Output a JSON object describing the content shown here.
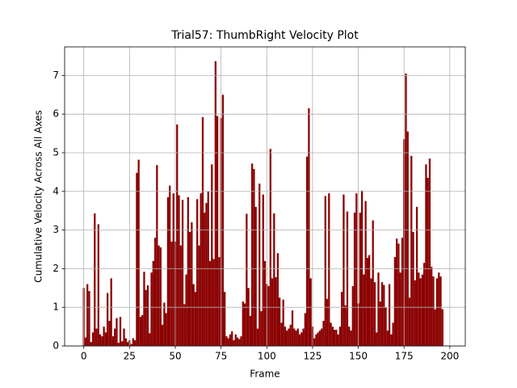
{
  "chart_data": {
    "type": "bar",
    "title": "Trial57: ThumbRight Velocity Plot",
    "x_label": "Frame",
    "y_label": "Cumulative Velocity Across All Axes",
    "color": "#8b0000",
    "grid": true,
    "x": [
      0,
      1,
      2,
      3,
      4,
      5,
      6,
      7,
      8,
      9,
      10,
      11,
      12,
      13,
      14,
      15,
      16,
      17,
      18,
      19,
      20,
      21,
      22,
      23,
      24,
      25,
      26,
      27,
      28,
      29,
      30,
      31,
      32,
      33,
      34,
      35,
      36,
      37,
      38,
      39,
      40,
      41,
      42,
      43,
      44,
      45,
      46,
      47,
      48,
      49,
      50,
      51,
      52,
      53,
      54,
      55,
      56,
      57,
      58,
      59,
      60,
      61,
      62,
      63,
      64,
      65,
      66,
      67,
      68,
      69,
      70,
      71,
      72,
      73,
      74,
      75,
      76,
      77,
      78,
      79,
      80,
      81,
      82,
      83,
      84,
      85,
      86,
      87,
      88,
      89,
      90,
      91,
      92,
      93,
      94,
      95,
      96,
      97,
      98,
      99,
      100,
      101,
      102,
      103,
      104,
      105,
      106,
      107,
      108,
      109,
      110,
      111,
      112,
      113,
      114,
      115,
      116,
      117,
      118,
      119,
      120,
      121,
      122,
      123,
      124,
      125,
      126,
      127,
      128,
      129,
      130,
      131,
      132,
      133,
      134,
      135,
      136,
      137,
      138,
      139,
      140,
      141,
      142,
      143,
      144,
      145,
      146,
      147,
      148,
      149,
      150,
      151,
      152,
      153,
      154,
      155,
      156,
      157,
      158,
      159,
      160,
      161,
      162,
      163,
      164,
      165,
      166,
      167,
      168,
      169,
      170,
      171,
      172,
      173,
      174,
      175,
      176,
      177,
      178,
      179,
      180,
      181,
      182,
      183,
      184,
      185,
      186,
      187,
      188,
      189,
      190,
      191,
      192,
      193,
      194,
      195,
      196
    ],
    "values": [
      1.5,
      0.22,
      1.6,
      1.42,
      0.1,
      0.35,
      3.43,
      0.45,
      3.15,
      0.3,
      0.25,
      0.5,
      0.35,
      1.37,
      0.65,
      1.75,
      0.25,
      0.45,
      0.72,
      0.08,
      0.75,
      0.12,
      0.45,
      0.2,
      0.1,
      0.15,
      0.05,
      0.2,
      0.15,
      4.48,
      4.82,
      0.75,
      0.8,
      1.92,
      1.45,
      1.57,
      0.33,
      1.9,
      2.2,
      2.8,
      4.68,
      2.6,
      2.55,
      0.55,
      1.12,
      0.85,
      3.85,
      4.15,
      2.7,
      3.95,
      2.7,
      5.73,
      3.9,
      2.6,
      3.78,
      1.08,
      1.85,
      3.85,
      2.95,
      3.2,
      1.6,
      1.4,
      3.8,
      2.6,
      3.95,
      5.92,
      3.45,
      3.7,
      4.0,
      2.2,
      4.7,
      2.25,
      7.37,
      5.95,
      2.3,
      5.9,
      6.5,
      1.4,
      0.25,
      0.2,
      0.3,
      0.38,
      0.15,
      0.3,
      0.22,
      0.18,
      0.25,
      1.15,
      1.1,
      3.42,
      1.5,
      0.78,
      4.72,
      4.58,
      3.6,
      0.45,
      4.2,
      0.9,
      3.92,
      2.2,
      1.6,
      1.55,
      5.1,
      1.75,
      3.43,
      1.78,
      2.4,
      1.25,
      0.6,
      1.2,
      0.5,
      0.4,
      0.45,
      0.55,
      0.92,
      0.45,
      0.4,
      0.45,
      0.3,
      0.35,
      0.45,
      0.85,
      4.9,
      6.15,
      1.75,
      0.5,
      0.2,
      0.3,
      0.35,
      0.4,
      0.45,
      0.65,
      3.88,
      1.22,
      3.95,
      0.6,
      0.5,
      0.42,
      0.42,
      0.3,
      0.5,
      1.4,
      3.92,
      1.05,
      3.48,
      0.5,
      0.4,
      1.55,
      3.45,
      3.95,
      1.1,
      3.45,
      4.02,
      1.85,
      3.75,
      2.28,
      2.35,
      1.75,
      3.25,
      1.65,
      0.35,
      1.9,
      1.15,
      1.65,
      1.58,
      1.0,
      0.4,
      1.6,
      0.3,
      0.6,
      2.3,
      2.78,
      2.65,
      1.9,
      2.8,
      5.35,
      7.05,
      5.55,
      1.25,
      4.92,
      2.95,
      1.7,
      3.6,
      1.9,
      1.75,
      1.85,
      2.15,
      4.7,
      4.35,
      4.85,
      2.05,
      1.8,
      0.95,
      1.75,
      1.9,
      1.8,
      0.95
    ],
    "xlim": [
      -10.45,
      208.45
    ],
    "xticks": [
      0,
      25,
      50,
      75,
      100,
      125,
      150,
      175,
      200
    ],
    "ylim": [
      0,
      7.74
    ],
    "yticks": [
      0,
      1,
      2,
      3,
      4,
      5,
      6,
      7
    ]
  }
}
